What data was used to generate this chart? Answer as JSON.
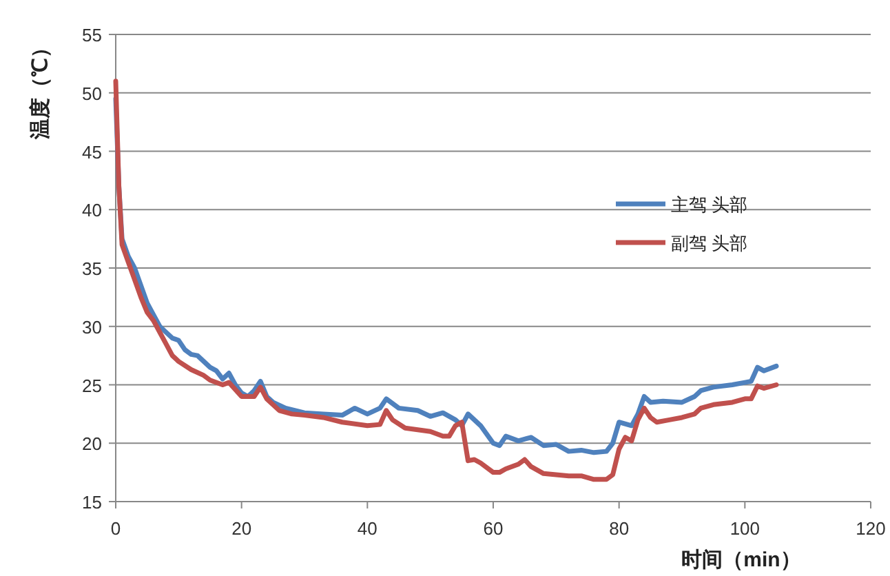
{
  "chart_data": {
    "type": "line",
    "xlabel": "时间（min）",
    "ylabel": "温度（℃）",
    "xlim": [
      0,
      120
    ],
    "ylim": [
      15,
      55
    ],
    "xticks": [
      0,
      20,
      40,
      60,
      80,
      100,
      120
    ],
    "yticks": [
      15,
      20,
      25,
      30,
      35,
      40,
      45,
      50,
      55
    ],
    "grid": "y",
    "legend": "right",
    "line_style": "solid",
    "series": [
      {
        "name": "主驾 头部",
        "color": "#4f81bd",
        "x": [
          0,
          0.5,
          1,
          2,
          3,
          4,
          5,
          6,
          7,
          8,
          9,
          10,
          11,
          12,
          13,
          14,
          15,
          16,
          17,
          18,
          19,
          20,
          21,
          22,
          23,
          24,
          25,
          27,
          30,
          33,
          36,
          38,
          40,
          42,
          43,
          45,
          48,
          50,
          52,
          54,
          55,
          56,
          58,
          60,
          61,
          62,
          64,
          66,
          68,
          70,
          72,
          74,
          76,
          78,
          79,
          80,
          82,
          83,
          84,
          85,
          87,
          90,
          92,
          93,
          95,
          98,
          100,
          101,
          102,
          103,
          105
        ],
        "values": [
          49.5,
          42,
          37.5,
          36,
          35,
          33.5,
          32,
          31,
          30,
          29.5,
          29,
          28.8,
          28,
          27.6,
          27.5,
          27,
          26.5,
          26.2,
          25.5,
          26,
          25,
          24.3,
          24,
          24.5,
          25.3,
          24,
          23.5,
          23,
          22.6,
          22.5,
          22.4,
          23,
          22.5,
          23,
          23.8,
          23,
          22.8,
          22.3,
          22.6,
          22,
          21.5,
          22.5,
          21.5,
          20,
          19.8,
          20.6,
          20.2,
          20.5,
          19.8,
          19.9,
          19.3,
          19.4,
          19.2,
          19.3,
          20,
          21.8,
          21.5,
          22.5,
          24,
          23.5,
          23.6,
          23.5,
          24,
          24.5,
          24.8,
          25,
          25.2,
          25.3,
          26.5,
          26.2,
          26.6
        ]
      },
      {
        "name": "副驾 头部",
        "color": "#c0504d",
        "x": [
          0,
          0.5,
          1,
          2,
          3,
          4,
          5,
          6,
          7,
          8,
          9,
          10,
          12,
          14,
          15,
          17,
          18,
          20,
          22,
          23,
          24,
          26,
          28,
          30,
          33,
          36,
          40,
          42,
          43,
          44,
          46,
          50,
          52,
          53,
          54,
          55,
          56,
          57,
          58,
          60,
          61,
          62,
          64,
          65,
          66,
          68,
          70,
          72,
          74,
          76,
          78,
          79,
          80,
          81,
          82,
          83,
          84,
          85,
          86,
          88,
          90,
          92,
          93,
          95,
          98,
          100,
          101,
          102,
          103,
          105
        ],
        "values": [
          51,
          42,
          37,
          35.5,
          34,
          32.5,
          31.2,
          30.5,
          29.5,
          28.5,
          27.5,
          27,
          26.3,
          25.8,
          25.4,
          25,
          25.2,
          24,
          24,
          24.8,
          23.8,
          22.8,
          22.5,
          22.4,
          22.2,
          21.8,
          21.5,
          21.6,
          22.8,
          22,
          21.3,
          21,
          20.6,
          20.6,
          21.5,
          21.8,
          18.5,
          18.6,
          18.3,
          17.5,
          17.5,
          17.8,
          18.2,
          18.6,
          18,
          17.4,
          17.3,
          17.2,
          17.2,
          16.9,
          16.9,
          17.3,
          19.5,
          20.5,
          20.2,
          22,
          23,
          22.2,
          21.8,
          22,
          22.2,
          22.5,
          23,
          23.3,
          23.5,
          23.8,
          23.8,
          24.9,
          24.7,
          25
        ]
      }
    ]
  }
}
